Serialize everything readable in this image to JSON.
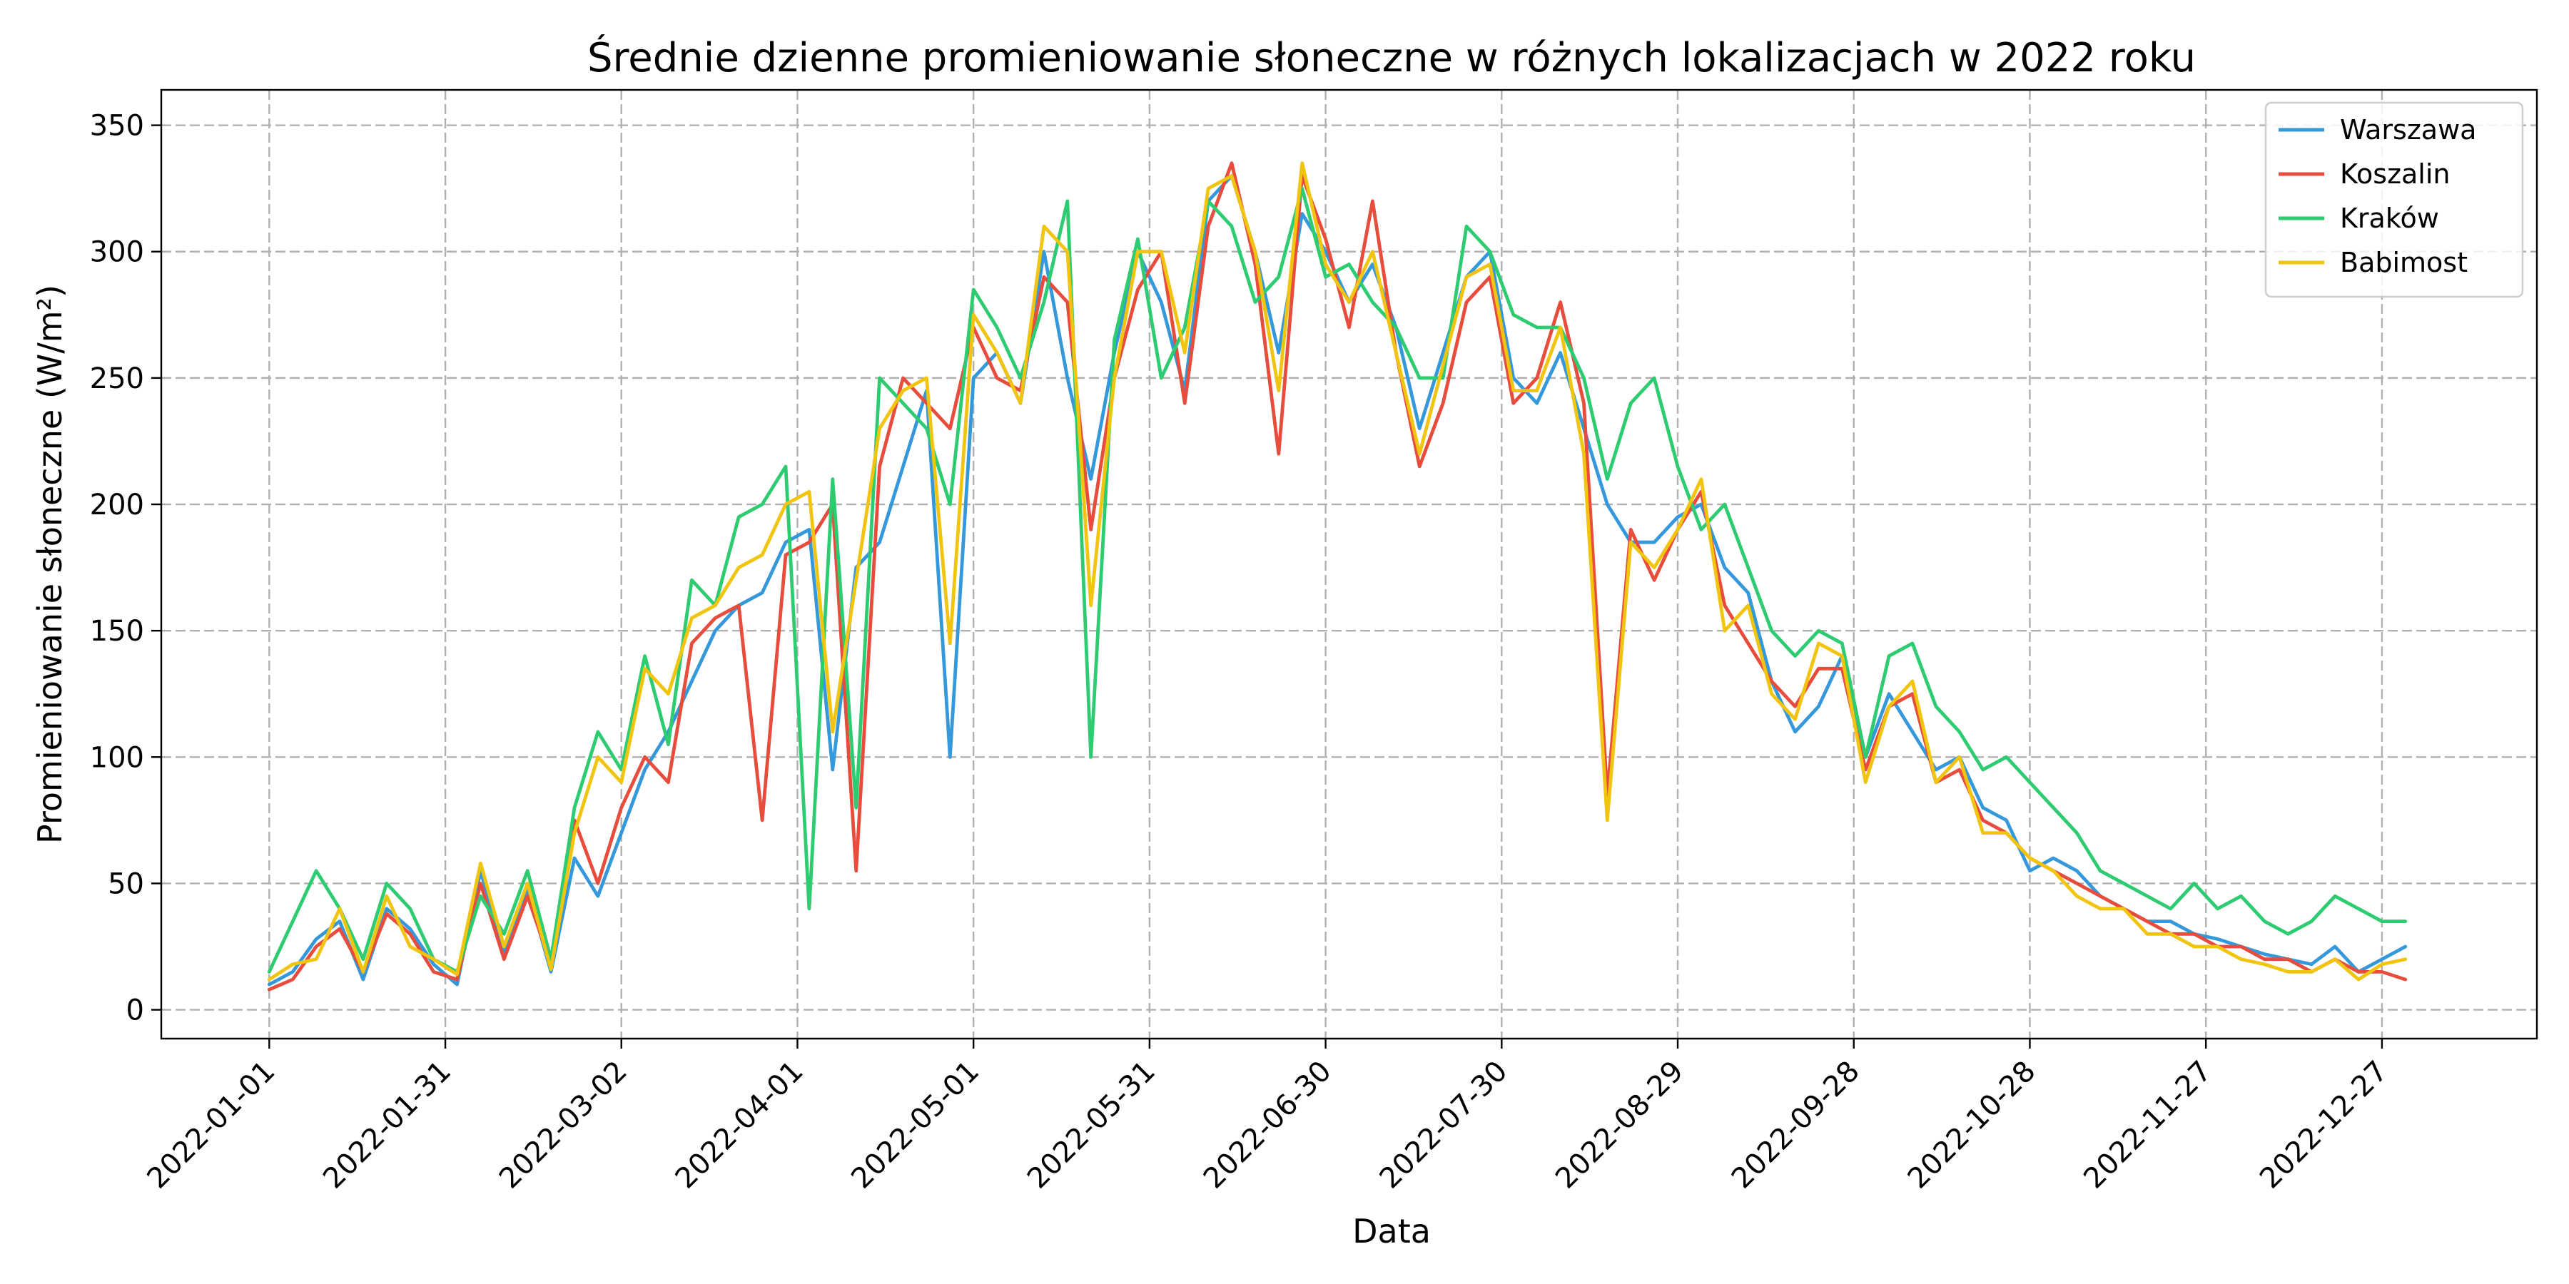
{
  "chart_data": {
    "type": "line",
    "title": "Średnie dzienne promieniowanie słoneczne w różnych lokalizacjach w 2022 roku",
    "xlabel": "Data",
    "ylabel": "Promieniowanie słoneczne (W/m²)",
    "x_type": "date",
    "xlim": [
      "2022-01-01",
      "2023-01-04"
    ],
    "ylim": [
      0,
      350
    ],
    "xticks": [
      "2022-01-01",
      "2022-01-31",
      "2022-03-02",
      "2022-04-01",
      "2022-05-01",
      "2022-05-31",
      "2022-06-30",
      "2022-07-30",
      "2022-08-29",
      "2022-09-28",
      "2022-10-28",
      "2022-11-27",
      "2022-12-27"
    ],
    "yticks": [
      0,
      50,
      100,
      150,
      200,
      250,
      300,
      350
    ],
    "grid": true,
    "legend_position": "top-right",
    "x": [
      "2022-01-01",
      "2022-01-05",
      "2022-01-09",
      "2022-01-13",
      "2022-01-17",
      "2022-01-21",
      "2022-01-25",
      "2022-01-29",
      "2022-02-02",
      "2022-02-06",
      "2022-02-10",
      "2022-02-14",
      "2022-02-18",
      "2022-02-22",
      "2022-02-26",
      "2022-03-02",
      "2022-03-06",
      "2022-03-10",
      "2022-03-14",
      "2022-03-18",
      "2022-03-22",
      "2022-03-26",
      "2022-03-30",
      "2022-04-03",
      "2022-04-07",
      "2022-04-11",
      "2022-04-15",
      "2022-04-19",
      "2022-04-23",
      "2022-04-27",
      "2022-05-01",
      "2022-05-05",
      "2022-05-09",
      "2022-05-13",
      "2022-05-17",
      "2022-05-21",
      "2022-05-25",
      "2022-05-29",
      "2022-06-02",
      "2022-06-06",
      "2022-06-10",
      "2022-06-14",
      "2022-06-18",
      "2022-06-22",
      "2022-06-26",
      "2022-06-30",
      "2022-07-04",
      "2022-07-08",
      "2022-07-12",
      "2022-07-16",
      "2022-07-20",
      "2022-07-24",
      "2022-07-28",
      "2022-08-01",
      "2022-08-05",
      "2022-08-09",
      "2022-08-13",
      "2022-08-17",
      "2022-08-21",
      "2022-08-25",
      "2022-08-29",
      "2022-09-02",
      "2022-09-06",
      "2022-09-10",
      "2022-09-14",
      "2022-09-18",
      "2022-09-22",
      "2022-09-26",
      "2022-09-30",
      "2022-10-04",
      "2022-10-08",
      "2022-10-12",
      "2022-10-16",
      "2022-10-20",
      "2022-10-24",
      "2022-10-28",
      "2022-11-01",
      "2022-11-05",
      "2022-11-09",
      "2022-11-13",
      "2022-11-17",
      "2022-11-21",
      "2022-11-25",
      "2022-11-29",
      "2022-12-03",
      "2022-12-07",
      "2022-12-11",
      "2022-12-15",
      "2022-12-19",
      "2022-12-23",
      "2022-12-27",
      "2022-12-31"
    ],
    "series": [
      {
        "name": "Warszawa",
        "color": "#3498db",
        "values": [
          10,
          15,
          28,
          35,
          12,
          40,
          32,
          18,
          10,
          55,
          22,
          48,
          15,
          60,
          45,
          70,
          95,
          110,
          130,
          150,
          160,
          165,
          185,
          190,
          95,
          175,
          185,
          215,
          245,
          100,
          250,
          260,
          240,
          300,
          250,
          210,
          260,
          300,
          280,
          245,
          320,
          330,
          300,
          260,
          315,
          300,
          280,
          295,
          270,
          230,
          260,
          290,
          300,
          250,
          240,
          260,
          230,
          200,
          185,
          185,
          195,
          200,
          175,
          165,
          130,
          110,
          120,
          140,
          100,
          125,
          110,
          95,
          100,
          80,
          75,
          55,
          60,
          55,
          45,
          40,
          35,
          35,
          30,
          28,
          25,
          22,
          20,
          18,
          25,
          15,
          20,
          25
        ]
      },
      {
        "name": "Koszalin",
        "color": "#e74c3c",
        "values": [
          8,
          12,
          25,
          32,
          15,
          38,
          30,
          15,
          12,
          50,
          20,
          45,
          18,
          75,
          50,
          80,
          100,
          90,
          145,
          155,
          160,
          75,
          180,
          185,
          200,
          55,
          215,
          250,
          240,
          230,
          270,
          250,
          245,
          290,
          280,
          190,
          250,
          285,
          300,
          240,
          310,
          335,
          295,
          220,
          330,
          305,
          270,
          320,
          260,
          215,
          240,
          280,
          290,
          240,
          250,
          280,
          240,
          85,
          190,
          170,
          190,
          205,
          160,
          145,
          130,
          120,
          135,
          135,
          95,
          120,
          125,
          90,
          95,
          75,
          70,
          60,
          55,
          50,
          45,
          40,
          35,
          30,
          30,
          25,
          25,
          20,
          20,
          15,
          20,
          15,
          15,
          12
        ]
      },
      {
        "name": "Kraków",
        "color": "#2ecc71",
        "values": [
          15,
          35,
          55,
          40,
          20,
          50,
          40,
          20,
          15,
          45,
          30,
          55,
          20,
          80,
          110,
          95,
          140,
          105,
          170,
          160,
          195,
          200,
          215,
          40,
          210,
          80,
          250,
          240,
          230,
          200,
          285,
          270,
          250,
          280,
          320,
          100,
          265,
          305,
          250,
          270,
          320,
          310,
          280,
          290,
          325,
          290,
          295,
          280,
          270,
          250,
          250,
          310,
          300,
          275,
          270,
          270,
          250,
          210,
          240,
          250,
          215,
          190,
          200,
          175,
          150,
          140,
          150,
          145,
          100,
          140,
          145,
          120,
          110,
          95,
          100,
          90,
          80,
          70,
          55,
          50,
          45,
          40,
          50,
          40,
          45,
          35,
          30,
          35,
          45,
          40,
          35,
          35
        ]
      },
      {
        "name": "Babimost",
        "color": "#f1c40f",
        "values": [
          12,
          18,
          20,
          40,
          15,
          45,
          25,
          20,
          14,
          58,
          25,
          50,
          16,
          70,
          100,
          90,
          135,
          125,
          155,
          160,
          175,
          180,
          200,
          205,
          110,
          170,
          230,
          245,
          250,
          145,
          275,
          260,
          240,
          310,
          300,
          160,
          250,
          300,
          300,
          260,
          325,
          330,
          300,
          245,
          335,
          295,
          280,
          300,
          260,
          220,
          255,
          290,
          295,
          245,
          245,
          270,
          220,
          75,
          185,
          175,
          190,
          210,
          150,
          160,
          125,
          115,
          145,
          140,
          90,
          120,
          130,
          90,
          100,
          70,
          70,
          60,
          55,
          45,
          40,
          40,
          30,
          30,
          25,
          25,
          20,
          18,
          15,
          15,
          20,
          12,
          18,
          20
        ]
      }
    ]
  }
}
